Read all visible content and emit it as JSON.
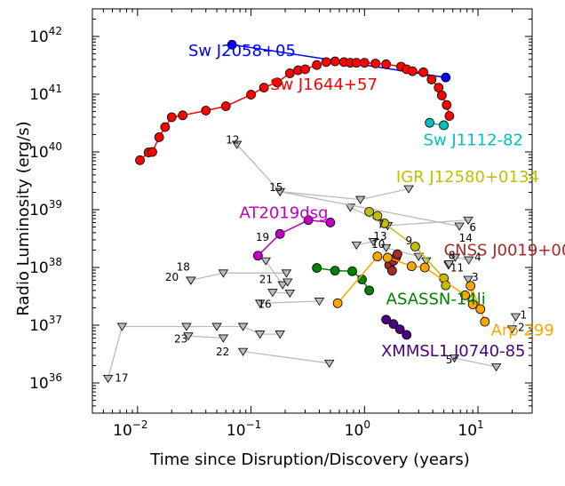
{
  "chart_data": {
    "type": "scatter",
    "xlabel": "Time since Disruption/Discovery (years)",
    "ylabel": "Radio Luminosity (erg/s)",
    "xscale": "log",
    "yscale": "log",
    "xlim": [
      0.004,
      30
    ],
    "ylim": [
      3e+35,
      3e+42
    ],
    "x_ticks": [
      {
        "value": 0.01,
        "base": "10",
        "exp": "−2"
      },
      {
        "value": 0.1,
        "base": "10",
        "exp": "−1"
      },
      {
        "value": 1,
        "base": "10",
        "exp": "0"
      },
      {
        "value": 10,
        "base": "10",
        "exp": "1"
      }
    ],
    "y_ticks": [
      {
        "value": 1e+36,
        "base": "10",
        "exp": "36"
      },
      {
        "value": 1e+37,
        "base": "10",
        "exp": "37"
      },
      {
        "value": 1e+38,
        "base": "10",
        "exp": "38"
      },
      {
        "value": 1e+39,
        "base": "10",
        "exp": "39"
      },
      {
        "value": 1e+40,
        "base": "10",
        "exp": "40"
      },
      {
        "value": 1e+41,
        "base": "10",
        "exp": "41"
      },
      {
        "value": 1e+42,
        "base": "10",
        "exp": "42"
      }
    ],
    "series": [
      {
        "name": "Sw J2058+05",
        "color": "#0000ff",
        "connected": true,
        "points": [
          [
            0.068,
            7.2e+41
          ],
          [
            5.2,
            1.95e+41
          ]
        ]
      },
      {
        "name": "Sw J1644+57",
        "color": "#ff0000",
        "connected": true,
        "points": [
          [
            0.0105,
            7.2e+39
          ],
          [
            0.0125,
            9.8e+39
          ],
          [
            0.0135,
            1e+40
          ],
          [
            0.0155,
            1.8e+40
          ],
          [
            0.0175,
            2.7e+40
          ],
          [
            0.02,
            4e+40
          ],
          [
            0.025,
            4.3e+40
          ],
          [
            0.04,
            5.2e+40
          ],
          [
            0.06,
            6.2e+40
          ],
          [
            0.1,
            9.8e+40
          ],
          [
            0.13,
            1.3e+41
          ],
          [
            0.17,
            1.6e+41
          ],
          [
            0.22,
            2.3e+41
          ],
          [
            0.26,
            2.6e+41
          ],
          [
            0.3,
            2.7e+41
          ],
          [
            0.38,
            3.2e+41
          ],
          [
            0.46,
            3.6e+41
          ],
          [
            0.55,
            3.7e+41
          ],
          [
            0.66,
            3.6e+41
          ],
          [
            0.75,
            3.5e+41
          ],
          [
            0.85,
            3.5e+41
          ],
          [
            1.0,
            3.5e+41
          ],
          [
            1.25,
            3.4e+41
          ],
          [
            1.55,
            3.3e+41
          ],
          [
            2.1,
            3e+41
          ],
          [
            2.35,
            2.7e+41
          ],
          [
            2.65,
            2.5e+41
          ],
          [
            3.3,
            2.4e+41
          ],
          [
            3.9,
            1.8e+41
          ],
          [
            4.5,
            1.3e+41
          ],
          [
            4.8,
            9.5e+40
          ],
          [
            5.3,
            6.5e+40
          ],
          [
            5.6,
            4.2e+40
          ]
        ]
      },
      {
        "name": "Sw J1112-82",
        "color": "#00bfbf",
        "connected": true,
        "points": [
          [
            3.75,
            3.2e+40
          ],
          [
            5.0,
            2.9e+40
          ]
        ]
      },
      {
        "name": "IGR J12580+0134",
        "color": "#bfbf00",
        "connected": true,
        "points": [
          [
            1.1,
            9.2e+38
          ],
          [
            1.3,
            7.8e+38
          ],
          [
            1.5,
            5.8e+38
          ],
          [
            2.8,
            2.3e+38
          ],
          [
            5.0,
            6.5e+37
          ],
          [
            5.2,
            4.9e+37
          ]
        ]
      },
      {
        "name": "AT2019dsg",
        "color": "#bf00bf",
        "connected": true,
        "points": [
          [
            0.115,
            1.6e+38
          ],
          [
            0.18,
            3.8e+38
          ],
          [
            0.32,
            6.6e+38
          ],
          [
            0.5,
            6e+38
          ]
        ]
      },
      {
        "name": "CNSS J0019+00",
        "color": "#a52a2a",
        "connected": true,
        "points": [
          [
            1.65,
            1.1e+38
          ],
          [
            1.8,
            1.3e+38
          ],
          [
            1.9,
            1.5e+38
          ],
          [
            1.95,
            1.7e+38
          ],
          [
            1.75,
            8.8e+37
          ]
        ]
      },
      {
        "name": "ASASSN-14li",
        "color": "#008000",
        "connected": true,
        "points": [
          [
            0.38,
            9.8e+37
          ],
          [
            0.55,
            8.8e+37
          ],
          [
            0.78,
            8.6e+37
          ],
          [
            0.95,
            6.2e+37
          ],
          [
            1.1,
            4e+37
          ]
        ]
      },
      {
        "name": "Arp 299",
        "color": "#ffa500",
        "connected": true,
        "points": [
          [
            0.58,
            2.4e+37
          ],
          [
            1.3,
            1.55e+38
          ],
          [
            1.6,
            1.48e+38
          ],
          [
            2.6,
            1.05e+38
          ],
          [
            3.4,
            1e+38
          ],
          [
            7.7,
            3.3e+37
          ],
          [
            9.0,
            2.3e+37
          ],
          [
            8.6,
            4.8e+37
          ],
          [
            10.5,
            1.9e+37
          ],
          [
            11.5,
            1.15e+37
          ]
        ]
      },
      {
        "name": "XMMSL1 J0740-85",
        "color": "#4b0082",
        "connected": true,
        "points": [
          [
            1.55,
            1.25e+37
          ],
          [
            1.8,
            1.05e+37
          ],
          [
            2.05,
            8.5e+36
          ],
          [
            2.35,
            6.8e+36
          ]
        ]
      }
    ],
    "upper_limits": {
      "color": "#bbbbbb",
      "marker_fill": "#bbbbbb",
      "edge": "#000000",
      "groups": [
        {
          "points": [
            [
              0.0055,
              1.2e+36
            ],
            [
              0.0073,
              9.5e+36
            ],
            [
              0.027,
              9.5e+36
            ],
            [
              0.05,
              9.5e+36
            ],
            [
              0.085,
              9.5e+36
            ],
            [
              0.12,
              7e+36
            ],
            [
              0.18,
              7e+36
            ]
          ]
        },
        {
          "points": [
            [
              0.028,
              6.5e+36
            ],
            [
              0.057,
              6e+36
            ]
          ]
        },
        {
          "points": [
            [
              0.085,
              3.5e+36
            ],
            [
              0.49,
              2.2e+36
            ]
          ]
        },
        {
          "points": [
            [
              6.2,
              2.7e+36
            ],
            [
              14.5,
              1.9e+36
            ]
          ]
        },
        {
          "points": [
            [
              21.5,
              1.4e+37
            ],
            [
              20.0,
              8.6e+36
            ]
          ]
        },
        {
          "points": [
            [
              0.0295,
              6e+37
            ],
            [
              0.0295,
              6e+37
            ],
            [
              0.057,
              8e+37
            ],
            [
              0.205,
              8e+37
            ]
          ]
        },
        {
          "points": [
            [
              0.135,
              1.3e+38
            ],
            [
              0.19,
              5e+37
            ],
            [
              0.21,
              5.6e+37
            ]
          ]
        },
        {
          "points": [
            [
              0.155,
              3.7e+37
            ],
            [
              0.22,
              3.6e+37
            ]
          ]
        },
        {
          "points": [
            [
              0.12,
              2.4e+37
            ],
            [
              0.4,
              2.6e+37
            ]
          ]
        },
        {
          "points": [
            [
              0.075,
              1.35e+40
            ],
            [
              0.18,
              2.05e+39
            ],
            [
              0.92,
              1.5e+39
            ],
            [
              2.45,
              2.3e+39
            ]
          ]
        },
        {
          "points": [
            [
              0.75,
              1.1e+39
            ],
            [
              1.6,
              5.3e+38
            ]
          ]
        },
        {
          "points": [
            [
              0.18,
              2.05e+39
            ],
            [
              6.85,
              5.2e+38
            ]
          ]
        },
        {
          "points": [
            [
              1.6,
              5.3e+38
            ],
            [
              8.2,
              6.6e+38
            ]
          ]
        },
        {
          "points": [
            [
              1.55,
              2.2e+38
            ],
            [
              3.0,
              1.55e+38
            ]
          ]
        },
        {
          "points": [
            [
              0.85,
              2.45e+38
            ],
            [
              1.2,
              2.8e+38
            ]
          ]
        },
        {
          "points": [
            [
              6.3,
              1.5e+38
            ],
            [
              8.3,
              1.35e+38
            ]
          ]
        },
        {
          "points": [
            [
              5.5,
              1.1e+38
            ],
            [
              5.55,
              1.15e+38
            ]
          ]
        },
        {
          "points": [
            [
              8.2,
              6.2e+37
            ]
          ]
        },
        {
          "points": [
            [
              3.5,
              1.3e+38
            ]
          ]
        }
      ]
    },
    "labels": [
      {
        "text": "Sw J2058+05",
        "color": "#0000ff",
        "at": [
          0.028,
          4.6e+41
        ]
      },
      {
        "text": "Sw J1644+57",
        "color": "#ff0000",
        "at": [
          0.147,
          1.2e+41
        ]
      },
      {
        "text": "Sw J1112-82",
        "color": "#00bfbf",
        "at": [
          3.3,
          1.3e+40
        ]
      },
      {
        "text": "IGR J12580+0134",
        "color": "#bfbf00",
        "at": [
          1.9,
          3e+39
        ]
      },
      {
        "text": "AT2019dsg",
        "color": "#bf00bf",
        "at": [
          0.079,
          7.2e+38
        ]
      },
      {
        "text": "CNSS J0019+00",
        "color": "#a52a2a",
        "at": [
          5.0,
          1.6e+38
        ]
      },
      {
        "text": "ASASSN-14li",
        "color": "#008000",
        "at": [
          1.55,
          2.3e+37
        ]
      },
      {
        "text": "Arp 299",
        "color": "#ffa500",
        "at": [
          13.0,
          6.6e+36
        ]
      },
      {
        "text": "XMMSL1 J0740-85",
        "color": "#4b0082",
        "at": [
          1.4,
          2.9e+36
        ]
      },
      {
        "text": "12",
        "color": "#000000",
        "at": [
          0.06,
          1.4e+40
        ]
      },
      {
        "text": "15",
        "color": "#000000",
        "at": [
          0.145,
          2.1e+39
        ]
      },
      {
        "text": "7",
        "color": "#000000",
        "at": [
          1.3,
          4.8e+38
        ]
      },
      {
        "text": "6",
        "color": "#000000",
        "at": [
          8.4,
          4.3e+38
        ]
      },
      {
        "text": "14",
        "color": "#000000",
        "at": [
          6.8,
          2.8e+38
        ]
      },
      {
        "text": "19",
        "color": "#000000",
        "at": [
          0.11,
          2.9e+38
        ]
      },
      {
        "text": "13",
        "color": "#000000",
        "at": [
          1.2,
          3e+38
        ]
      },
      {
        "text": "9",
        "color": "#000000",
        "at": [
          2.3,
          2.5e+38
        ]
      },
      {
        "text": "10",
        "color": "#000000",
        "at": [
          1.15,
          2.2e+38
        ]
      },
      {
        "text": "8",
        "color": "#000000",
        "at": [
          5.5,
          1.4e+38
        ]
      },
      {
        "text": "4",
        "color": "#000000",
        "at": [
          9.3,
          1.3e+38
        ]
      },
      {
        "text": "11",
        "color": "#000000",
        "at": [
          5.7,
          8.6e+37
        ]
      },
      {
        "text": "3",
        "color": "#000000",
        "at": [
          8.8,
          5.9e+37
        ]
      },
      {
        "text": "18",
        "color": "#000000",
        "at": [
          0.022,
          8.8e+37
        ]
      },
      {
        "text": "20",
        "color": "#000000",
        "at": [
          0.0175,
          5.9e+37
        ]
      },
      {
        "text": "21",
        "color": "#000000",
        "at": [
          0.118,
          5.4e+37
        ]
      },
      {
        "text": "16",
        "color": "#000000",
        "at": [
          0.115,
          2e+37
        ]
      },
      {
        "text": "1",
        "color": "#000000",
        "at": [
          23.5,
          1.3e+37
        ]
      },
      {
        "text": "2",
        "color": "#000000",
        "at": [
          22.5,
          8e+36
        ]
      },
      {
        "text": "23",
        "color": "#000000",
        "at": [
          0.021,
          5e+36
        ]
      },
      {
        "text": "22",
        "color": "#000000",
        "at": [
          0.049,
          3e+36
        ]
      },
      {
        "text": "5",
        "color": "#000000",
        "at": [
          5.2,
          2.2e+36
        ]
      },
      {
        "text": "17",
        "color": "#000000",
        "at": [
          0.0063,
          1.05e+36
        ]
      }
    ]
  }
}
